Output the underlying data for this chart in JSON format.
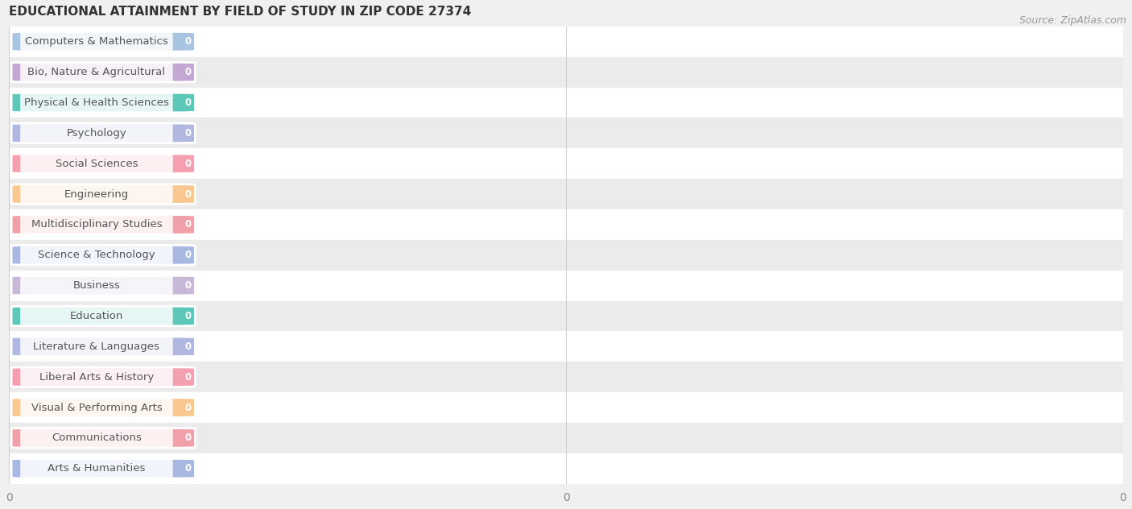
{
  "title": "EDUCATIONAL ATTAINMENT BY FIELD OF STUDY IN ZIP CODE 27374",
  "source": "Source: ZipAtlas.com",
  "categories": [
    "Computers & Mathematics",
    "Bio, Nature & Agricultural",
    "Physical & Health Sciences",
    "Psychology",
    "Social Sciences",
    "Engineering",
    "Multidisciplinary Studies",
    "Science & Technology",
    "Business",
    "Education",
    "Literature & Languages",
    "Liberal Arts & History",
    "Visual & Performing Arts",
    "Communications",
    "Arts & Humanities"
  ],
  "values": [
    0,
    0,
    0,
    0,
    0,
    0,
    0,
    0,
    0,
    0,
    0,
    0,
    0,
    0,
    0
  ],
  "bar_colors": [
    "#a8c4e0",
    "#c4a8d4",
    "#5ec8b8",
    "#b0b8e0",
    "#f4a0b0",
    "#f8c890",
    "#f0a0a8",
    "#a8b8e0",
    "#c8b8d8",
    "#5ec8b8",
    "#b0b8e0",
    "#f4a0b0",
    "#f8c890",
    "#f0a0a8",
    "#a8b8e0"
  ],
  "row_bg_even": "#ffffff",
  "row_bg_odd": "#ebebeb",
  "background_color": "#f0f0f0",
  "title_fontsize": 11,
  "source_fontsize": 9,
  "label_fontsize": 9.5
}
